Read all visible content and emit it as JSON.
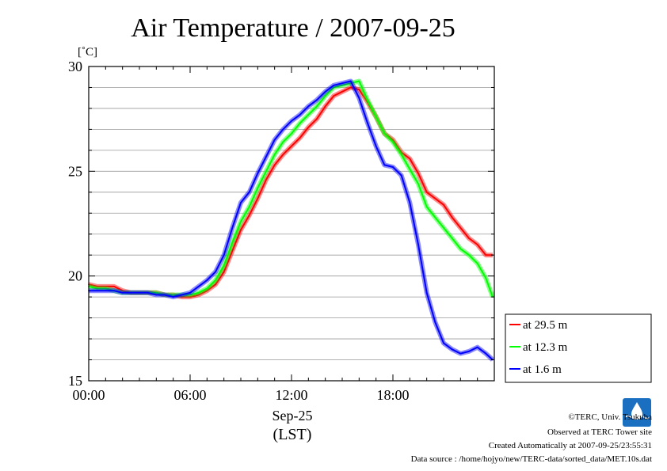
{
  "chart_data": {
    "type": "line",
    "title": "Air Temperature / 2007-09-25",
    "y_unit_label": "[˚C]",
    "xlabel_date": "Sep-25",
    "xlabel_zone": "(LST)",
    "x_tick_labels": [
      "00:00",
      "06:00",
      "12:00",
      "18:00"
    ],
    "x_ticks_hours": [
      0,
      6,
      12,
      18
    ],
    "y_tick_labels": [
      "15",
      "20",
      "25",
      "30"
    ],
    "y_ticks": [
      15,
      20,
      25,
      30
    ],
    "xlim": [
      0,
      24
    ],
    "ylim": [
      15,
      30
    ],
    "grid": true,
    "legend_position": "right-bottom-outside",
    "x": [
      0,
      0.5,
      1,
      1.5,
      2,
      2.5,
      3,
      3.5,
      4,
      4.5,
      5,
      5.5,
      6,
      6.5,
      7,
      7.5,
      8,
      8.5,
      9,
      9.5,
      10,
      10.5,
      11,
      11.5,
      12,
      12.5,
      13,
      13.5,
      14,
      14.5,
      15,
      15.5,
      16,
      16.5,
      17,
      17.5,
      18,
      18.5,
      19,
      19.5,
      20,
      20.5,
      21,
      21.5,
      22,
      22.5,
      23,
      23.5,
      23.9
    ],
    "series": [
      {
        "name": "at 29.5 m",
        "color": "#ff0000",
        "values": [
          19.6,
          19.5,
          19.5,
          19.5,
          19.3,
          19.2,
          19.2,
          19.2,
          19.2,
          19.1,
          19.1,
          19.0,
          19.0,
          19.1,
          19.3,
          19.6,
          20.2,
          21.2,
          22.2,
          22.9,
          23.7,
          24.6,
          25.3,
          25.8,
          26.2,
          26.6,
          27.1,
          27.5,
          28.1,
          28.6,
          28.8,
          29.0,
          28.9,
          28.3,
          27.6,
          26.8,
          26.5,
          25.9,
          25.6,
          24.9,
          24.0,
          23.7,
          23.4,
          22.8,
          22.3,
          21.8,
          21.5,
          21.0,
          21.0
        ]
      },
      {
        "name": "at 12.3 m",
        "color": "#00ff00",
        "values": [
          19.5,
          19.4,
          19.4,
          19.3,
          19.2,
          19.2,
          19.2,
          19.2,
          19.2,
          19.1,
          19.1,
          19.1,
          19.1,
          19.2,
          19.4,
          19.8,
          20.5,
          21.6,
          22.6,
          23.3,
          24.2,
          25.0,
          25.8,
          26.4,
          26.8,
          27.3,
          27.7,
          28.1,
          28.6,
          29.0,
          29.1,
          29.2,
          29.3,
          28.4,
          27.6,
          26.8,
          26.4,
          25.8,
          25.1,
          24.4,
          23.3,
          22.8,
          22.3,
          21.8,
          21.3,
          21.0,
          20.6,
          19.9,
          19.0
        ]
      },
      {
        "name": "at 1.6 m",
        "color": "#0000ff",
        "values": [
          19.3,
          19.3,
          19.3,
          19.3,
          19.2,
          19.2,
          19.2,
          19.2,
          19.1,
          19.1,
          19.0,
          19.1,
          19.2,
          19.5,
          19.8,
          20.2,
          21.0,
          22.3,
          23.5,
          24.0,
          24.9,
          25.7,
          26.5,
          27.0,
          27.4,
          27.7,
          28.1,
          28.4,
          28.8,
          29.1,
          29.2,
          29.3,
          28.5,
          27.3,
          26.2,
          25.3,
          25.2,
          24.8,
          23.5,
          21.5,
          19.2,
          17.8,
          16.8,
          16.5,
          16.3,
          16.4,
          16.6,
          16.3,
          16.0
        ]
      }
    ]
  },
  "credits": {
    "copyright": "©TERC, Univ. Tsukuba",
    "site": "Observed at TERC Tower site",
    "created": "Created Automatically at 2007-09-25/23:55:31",
    "source": "Data source : /home/hojyo/new/TERC-data/sorted_data/MET.10s.dat",
    "logo_text": "TERC"
  }
}
